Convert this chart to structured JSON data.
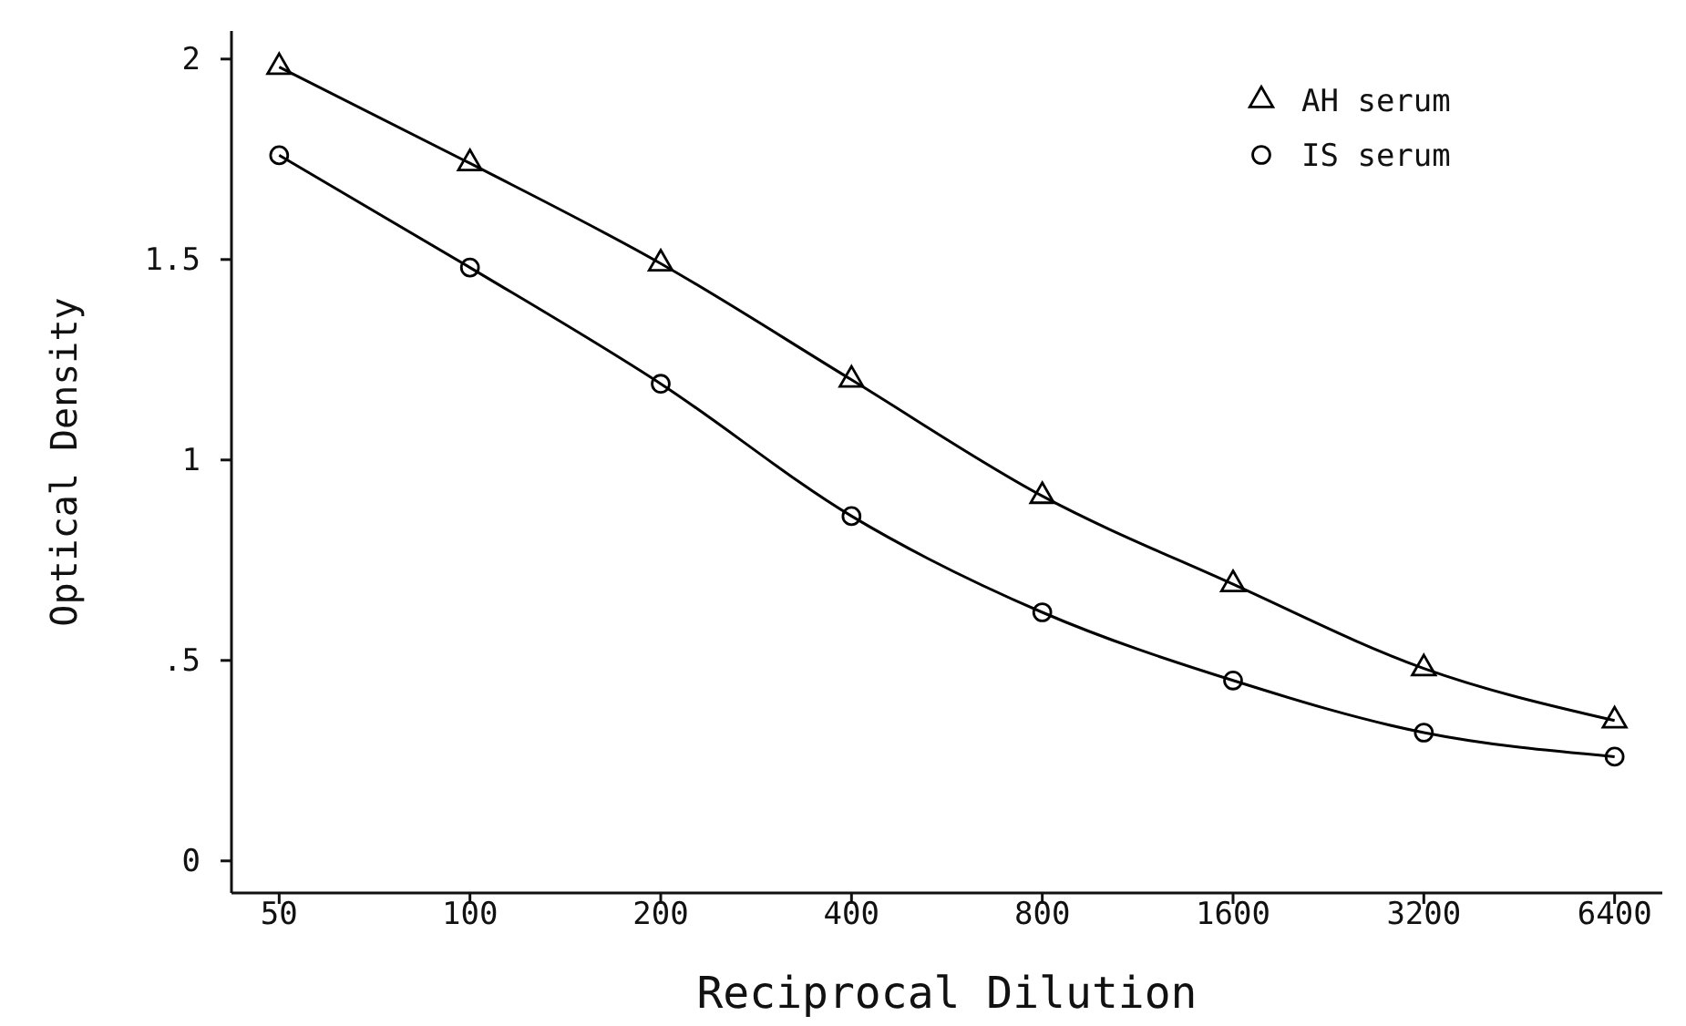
{
  "chart_data": {
    "type": "line",
    "xlabel": "Reciprocal Dilution",
    "ylabel": "Optical Density",
    "categories": [
      "50",
      "100",
      "200",
      "400",
      "800",
      "1600",
      "3200",
      "6400"
    ],
    "series": [
      {
        "name": "AH serum",
        "color": "#000000",
        "marker": "triangle",
        "values": [
          1.98,
          1.74,
          1.49,
          1.2,
          0.91,
          0.69,
          0.48,
          0.35
        ]
      },
      {
        "name": "IS serum",
        "color": "#000000",
        "marker": "circle",
        "values": [
          1.76,
          1.48,
          1.19,
          0.86,
          0.62,
          0.45,
          0.32,
          0.26
        ]
      }
    ],
    "ylim": [
      -0.08,
      2.07
    ],
    "yticks": [
      0,
      {
        "value": 0.5,
        "label": ".5"
      },
      1,
      1.5,
      2
    ],
    "grid": false,
    "legend": "top right",
    "line_style": "solid"
  }
}
